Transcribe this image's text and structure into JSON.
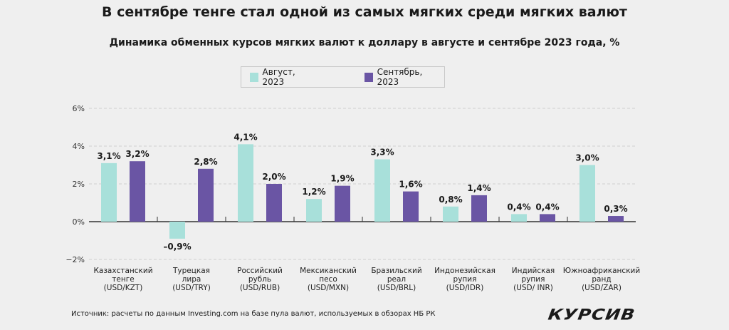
{
  "title": "В сентябре тенге стал одной из самых мягких среди мягких валют",
  "source": "Источник: расчеты по данным Investing.com на базе пула валют, используемых в обзорах НБ РК",
  "logo": "КУРСИВ",
  "chart_data": {
    "type": "bar",
    "title": "Динамика обменных курсов мягких валют к доллару в августе и сентябре 2023 года, %",
    "xlabel": "",
    "ylabel": "",
    "ylim": [
      -2,
      6
    ],
    "yticks": [
      6,
      4,
      2,
      0,
      -2
    ],
    "ytick_labels": [
      "6%",
      "4%",
      "2%",
      "0%",
      "−2%"
    ],
    "grid": true,
    "legend_placement": "top-center",
    "categories": [
      [
        "Казахстанский",
        "тенге",
        "(USD/KZT)"
      ],
      [
        "Турецкая",
        "лира",
        "(USD/TRY)"
      ],
      [
        "Российский",
        "рубль",
        "(USD/RUB)"
      ],
      [
        "Мексиканский",
        "песо",
        "(USD/MXN)"
      ],
      [
        "Бразильский",
        "реал",
        "(USD/BRL)"
      ],
      [
        "Индонезийская",
        "рупия",
        "(USD/IDR)"
      ],
      [
        "Индийская",
        "рупия",
        "(USD/ INR)"
      ],
      [
        "Южноафриканский",
        "ранд",
        "(USD/ZAR)"
      ]
    ],
    "series": [
      {
        "name": "Август, 2023",
        "color": "#a8e0da",
        "values": [
          3.1,
          -0.9,
          4.1,
          1.2,
          3.3,
          0.8,
          0.4,
          3.0
        ],
        "labels": [
          "3,1%",
          "–0,9%",
          "4,1%",
          "1,2%",
          "3,3%",
          "0,8%",
          "0,4%",
          "3,0%"
        ]
      },
      {
        "name": "Сентябрь, 2023",
        "color": "#6a55a4",
        "values": [
          3.2,
          2.8,
          2.0,
          1.9,
          1.6,
          1.4,
          0.4,
          0.3
        ],
        "labels": [
          "3,2%",
          "2,8%",
          "2,0%",
          "1,9%",
          "1,6%",
          "1,4%",
          "0,4%",
          "0,3%"
        ]
      }
    ]
  }
}
